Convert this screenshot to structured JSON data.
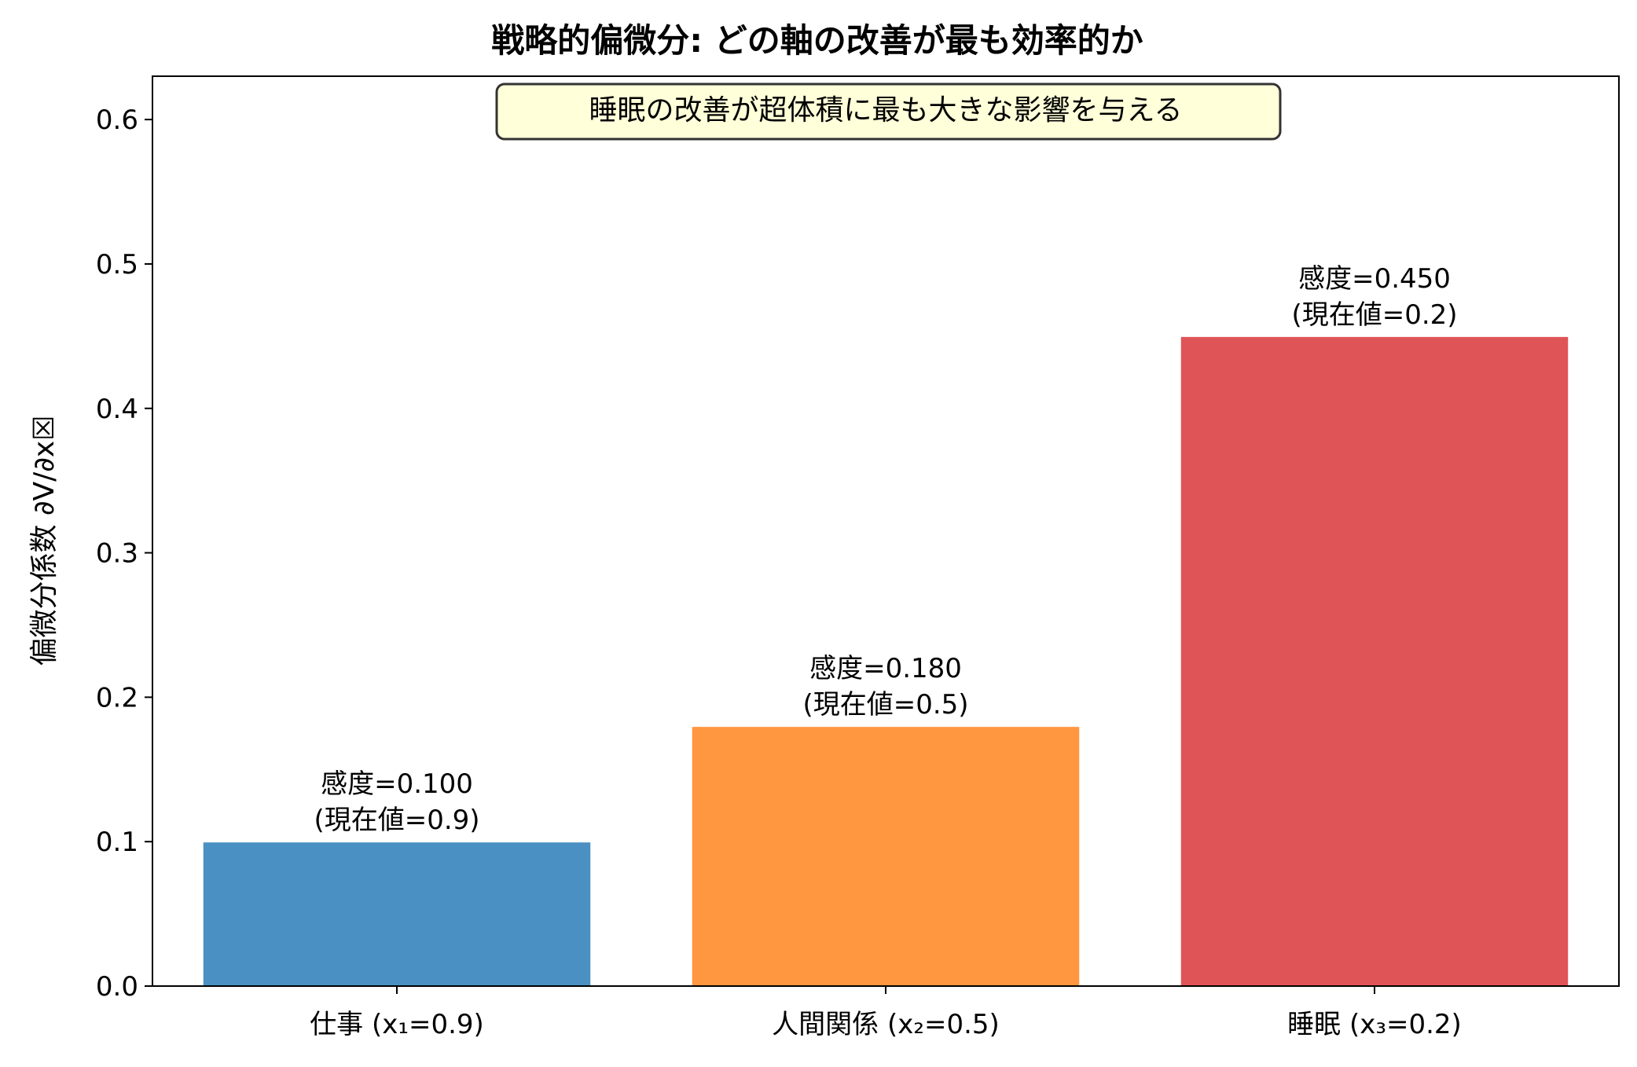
{
  "chart_data": {
    "type": "bar",
    "title": "戦略的偏微分: どの軸の改善が最も効率的か",
    "xlabel": "",
    "ylabel": "偏微分係数 ∂V/∂x☒",
    "ylim": [
      0.0,
      0.63
    ],
    "yticks": [
      "0.0",
      "0.1",
      "0.2",
      "0.3",
      "0.4",
      "0.5",
      "0.6"
    ],
    "ytick_values": [
      0.0,
      0.1,
      0.2,
      0.3,
      0.4,
      0.5,
      0.6
    ],
    "categories": [
      "仕事 (x₁=0.9)",
      "人間関係 (x₂=0.5)",
      "睡眠 (x₃=0.2)"
    ],
    "values": [
      0.1,
      0.18,
      0.45
    ],
    "bar_labels": [
      [
        "感度=0.100",
        "(現在値=0.9)"
      ],
      [
        "感度=0.180",
        "(現在値=0.5)"
      ],
      [
        "感度=0.450",
        "(現在値=0.2)"
      ]
    ],
    "colors": [
      "#4a90c2",
      "#ff9640",
      "#df5457"
    ],
    "annotation": "睡眠の改善が超体積に最も大きな影響を与える",
    "annotation_bg": "#ffffd9",
    "grid": false,
    "legend": "none"
  }
}
